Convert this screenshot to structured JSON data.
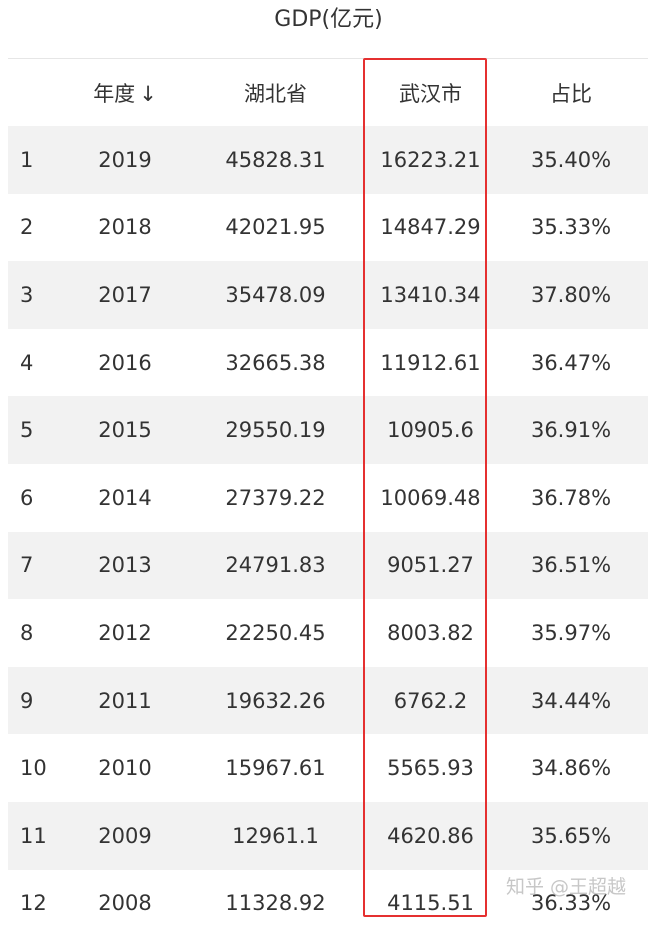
{
  "title": "GDP(亿元)",
  "chart_data": {
    "type": "table",
    "title": "GDP(亿元)",
    "columns": [
      "",
      "年度",
      "湖北省",
      "武汉市",
      "占比"
    ],
    "sort_indicator": "↓",
    "rows": [
      [
        "1",
        "2019",
        "45828.31",
        "16223.21",
        "35.40%"
      ],
      [
        "2",
        "2018",
        "42021.95",
        "14847.29",
        "35.33%"
      ],
      [
        "3",
        "2017",
        "35478.09",
        "13410.34",
        "37.80%"
      ],
      [
        "4",
        "2016",
        "32665.38",
        "11912.61",
        "36.47%"
      ],
      [
        "5",
        "2015",
        "29550.19",
        "10905.6",
        "36.91%"
      ],
      [
        "6",
        "2014",
        "27379.22",
        "10069.48",
        "36.78%"
      ],
      [
        "7",
        "2013",
        "24791.83",
        "9051.27",
        "36.51%"
      ],
      [
        "8",
        "2012",
        "22250.45",
        "8003.82",
        "35.97%"
      ],
      [
        "9",
        "2011",
        "19632.26",
        "6762.2",
        "34.44%"
      ],
      [
        "10",
        "2010",
        "15967.61",
        "5565.93",
        "34.86%"
      ],
      [
        "11",
        "2009",
        "12961.1",
        "4620.86",
        "35.65%"
      ],
      [
        "12",
        "2008",
        "11328.92",
        "4115.51",
        "36.33%"
      ]
    ],
    "highlighted_column": "武汉市"
  },
  "colors": {
    "highlight": "#e53030",
    "stripe": "#f2f2f2"
  },
  "watermark": "知乎 @王超越"
}
